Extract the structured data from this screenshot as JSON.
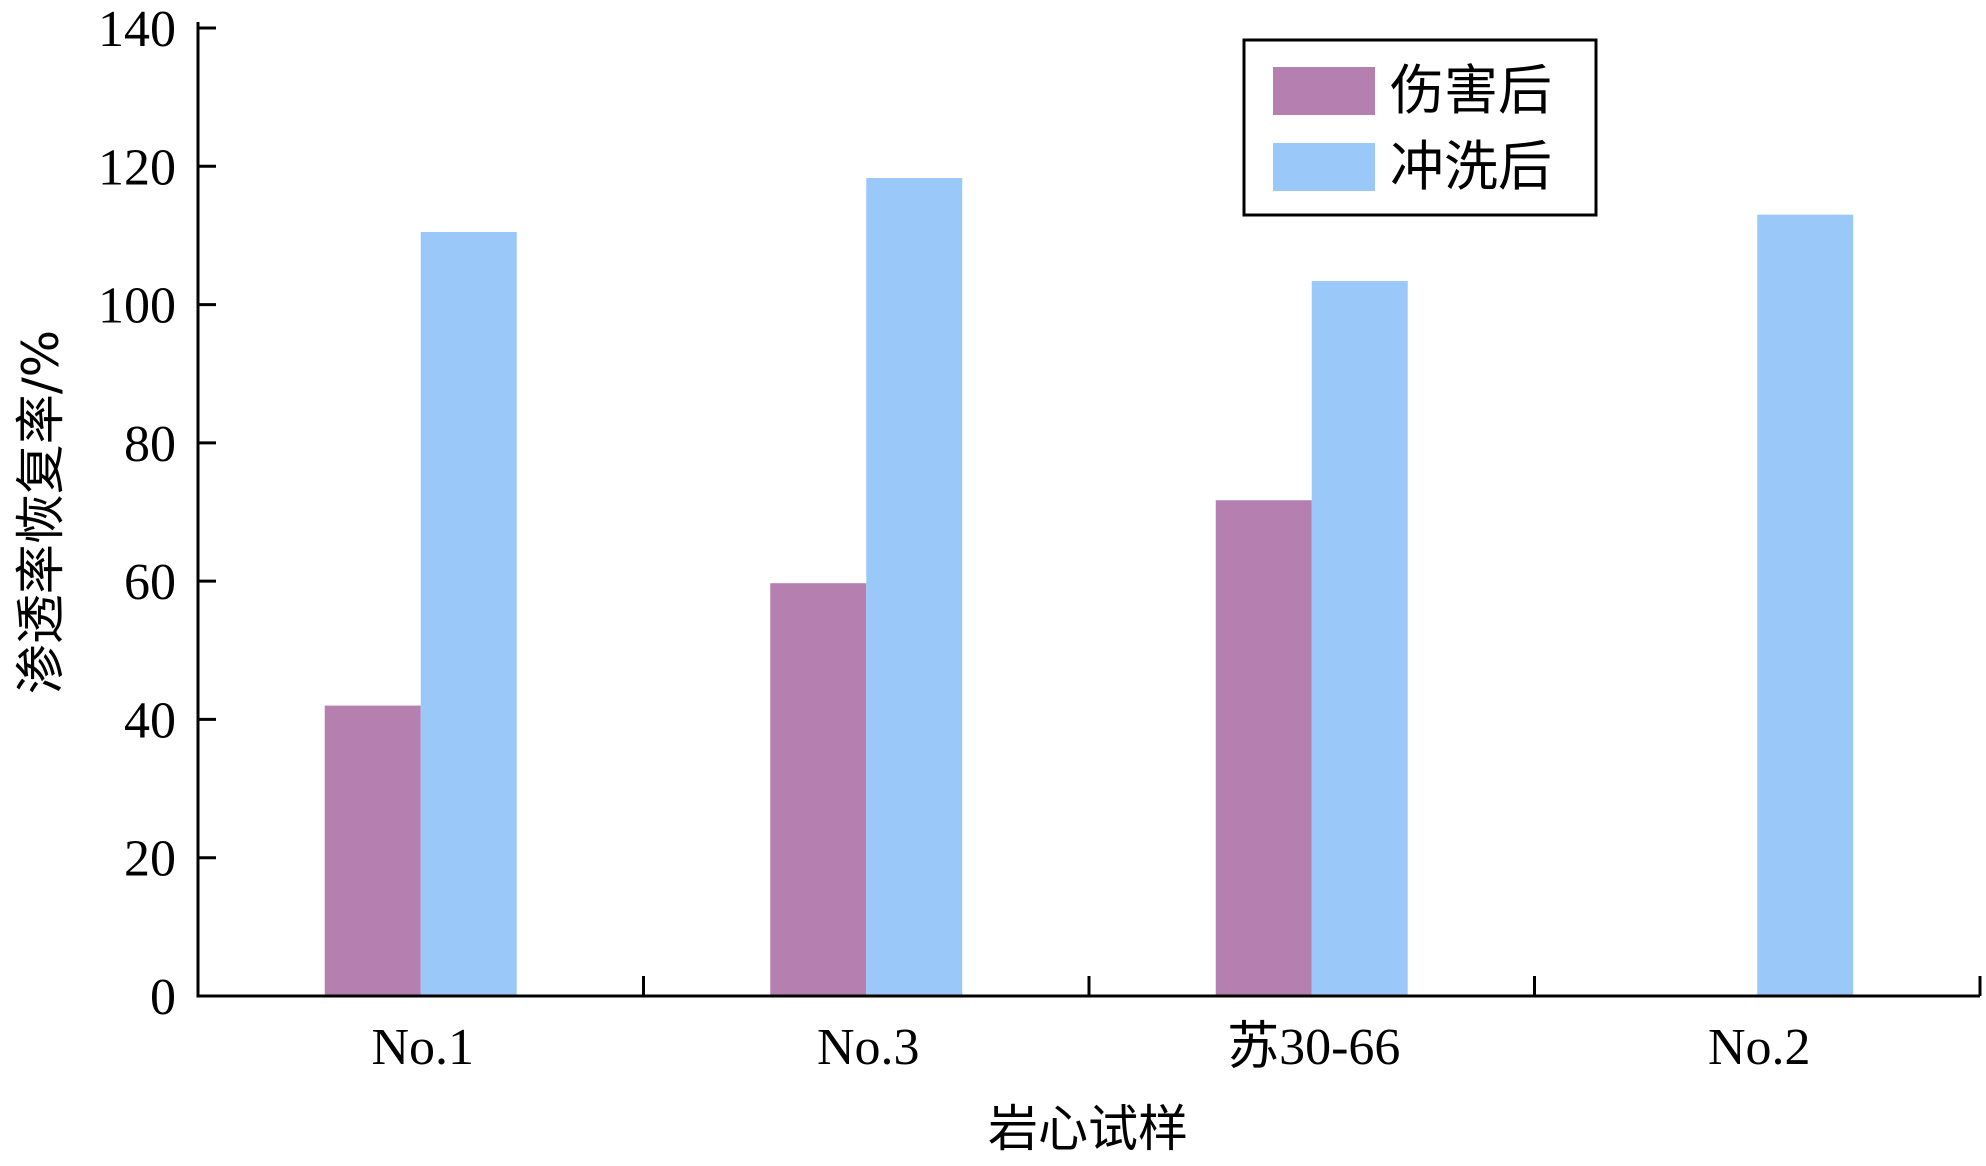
{
  "chart_data": {
    "type": "bar",
    "categories": [
      "No.1",
      "No.3",
      "苏30-66",
      "No.2"
    ],
    "series": [
      {
        "name": "伤害后",
        "values": [
          42,
          59.7,
          71.7,
          null
        ],
        "color": "#b57fb0"
      },
      {
        "name": "冲洗后",
        "values": [
          110.5,
          118.3,
          103.4,
          113
        ],
        "color": "#9ac8f8"
      }
    ],
    "title": "",
    "xlabel": "岩心试样",
    "ylabel": "渗透率恢复率/%",
    "ylim": [
      0,
      140
    ],
    "yticks": [
      0,
      20,
      40,
      60,
      80,
      100,
      120,
      140
    ],
    "grid": false,
    "legend_position": "top-right"
  }
}
